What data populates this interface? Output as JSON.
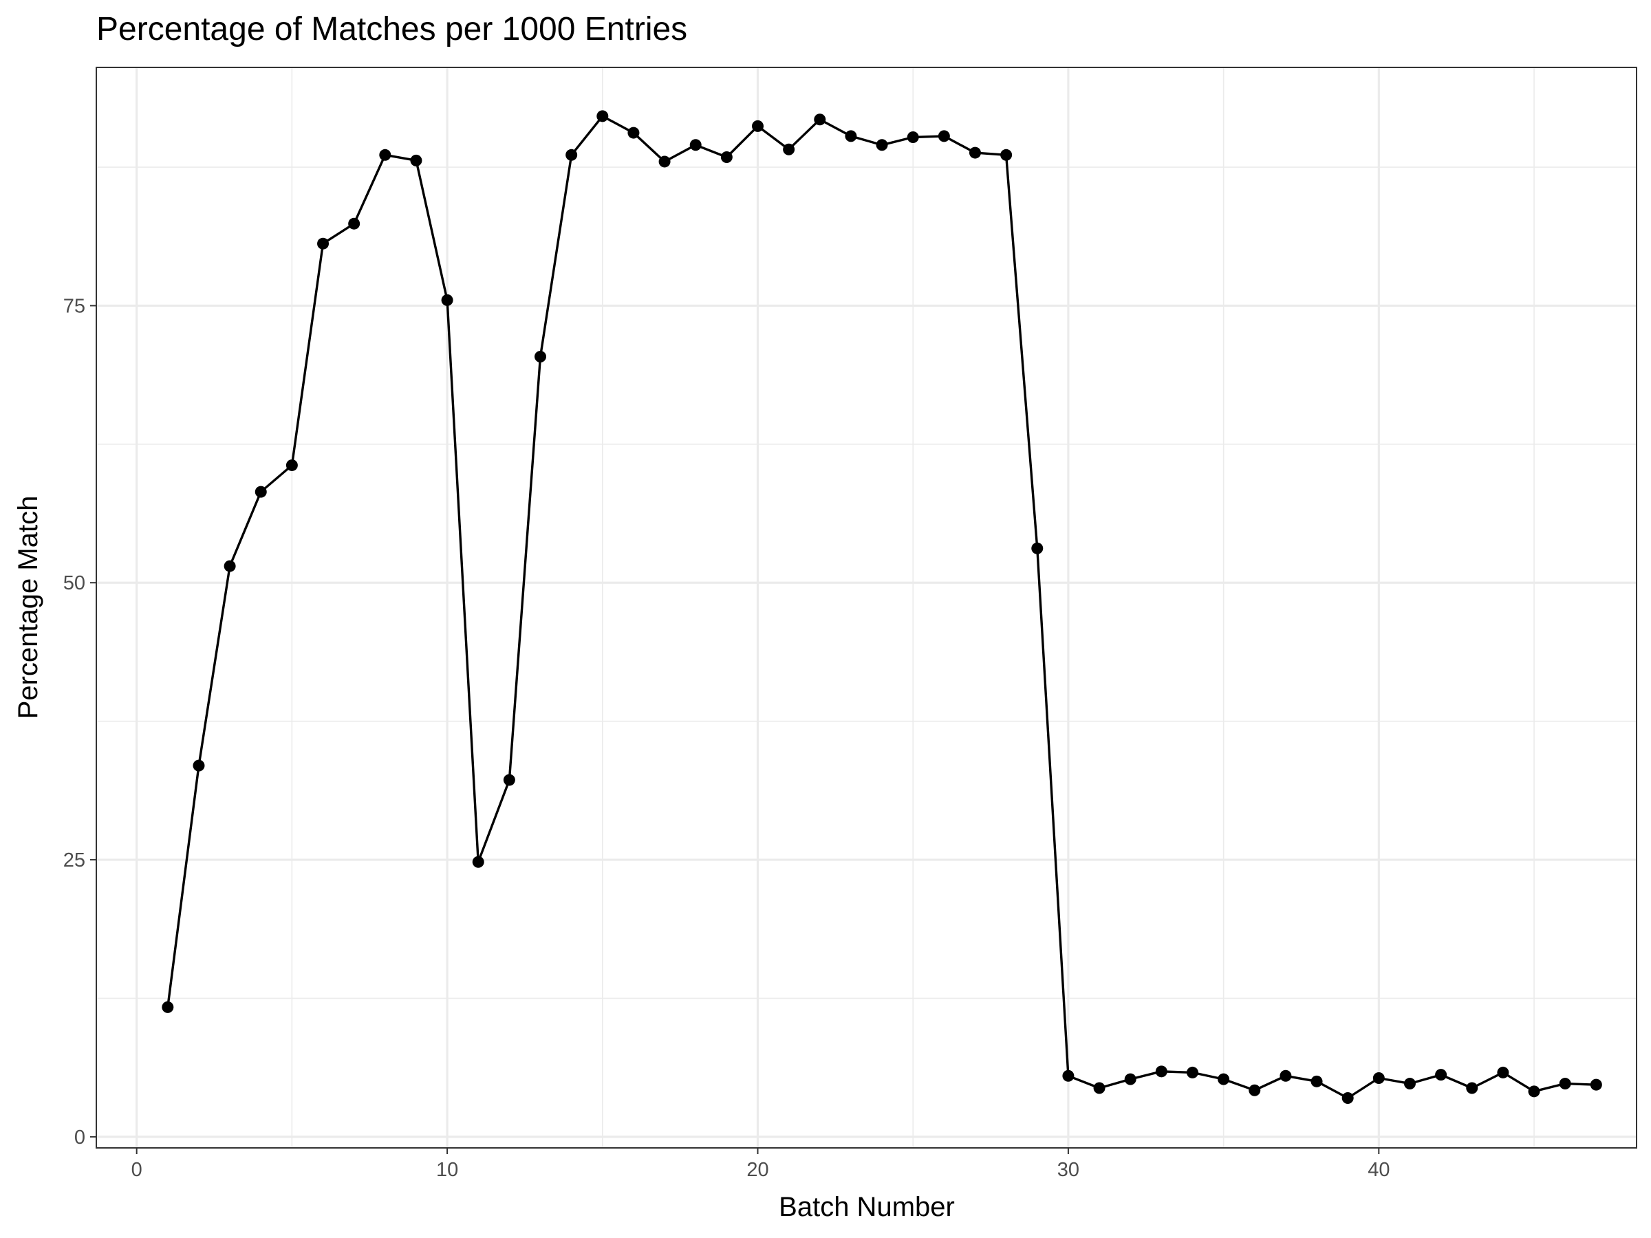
{
  "chart_data": {
    "type": "line",
    "title": "Percentage of Matches per 1000 Entries",
    "xlabel": "Batch Number",
    "ylabel": "Percentage Match",
    "xlim": [
      -1.3,
      48.3
    ],
    "ylim": [
      -1,
      96.5
    ],
    "x_ticks": [
      0,
      10,
      20,
      30,
      40
    ],
    "y_ticks": [
      0,
      25,
      50,
      75
    ],
    "x_ticks_labels": [
      "0",
      "10",
      "20",
      "30",
      "40"
    ],
    "y_ticks_labels": [
      "0",
      "25",
      "50",
      "75"
    ],
    "grid": true,
    "x": [
      1,
      2,
      3,
      4,
      5,
      6,
      7,
      8,
      9,
      10,
      11,
      12,
      13,
      14,
      15,
      16,
      17,
      18,
      19,
      20,
      21,
      22,
      23,
      24,
      25,
      26,
      27,
      28,
      29,
      30,
      31,
      32,
      33,
      34,
      35,
      36,
      37,
      38,
      39,
      40,
      41,
      42,
      43,
      44,
      45,
      46,
      47
    ],
    "y": [
      11.7,
      33.5,
      51.5,
      58.2,
      60.6,
      80.6,
      82.4,
      88.6,
      88.1,
      75.5,
      24.8,
      32.2,
      70.4,
      88.6,
      92.1,
      90.6,
      88.0,
      89.5,
      88.4,
      91.2,
      89.1,
      91.8,
      90.3,
      89.5,
      90.2,
      90.3,
      88.8,
      88.6,
      53.1,
      5.5,
      4.4,
      5.2,
      5.9,
      5.8,
      5.2,
      4.2,
      5.5,
      5.0,
      3.5,
      5.3,
      4.8,
      5.6,
      4.4,
      5.8,
      4.1,
      4.8,
      4.7
    ],
    "series_color": "#000000"
  }
}
